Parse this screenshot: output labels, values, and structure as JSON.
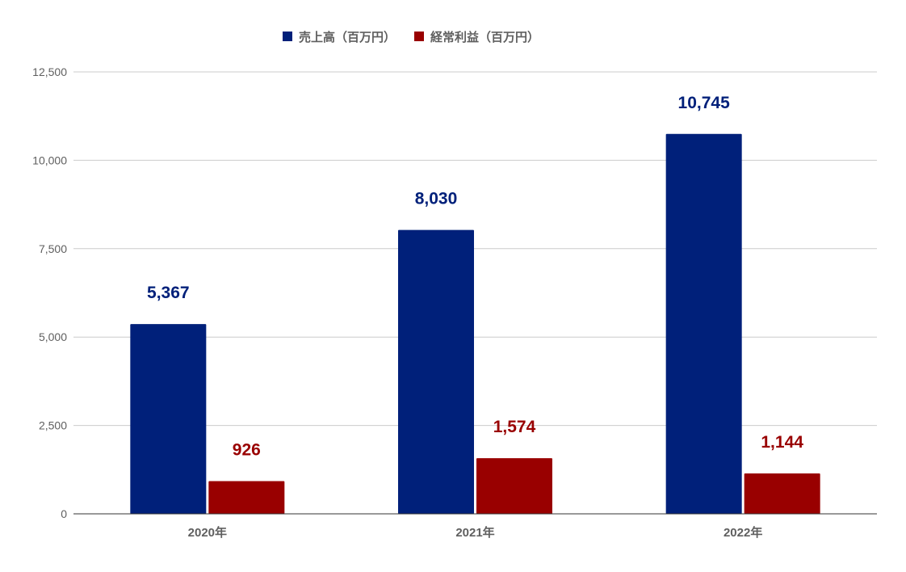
{
  "chart_data": {
    "type": "bar",
    "categories": [
      "2020年",
      "2021年",
      "2022年"
    ],
    "series": [
      {
        "name": "売上高（百万円）",
        "values": [
          5367,
          8030,
          10745
        ],
        "labels": [
          "5,367",
          "8,030",
          "10,745"
        ],
        "color": "#00207a"
      },
      {
        "name": "経常利益（百万円）",
        "values": [
          926,
          1574,
          1144
        ],
        "labels": [
          "926",
          "1,574",
          "1,144"
        ],
        "color": "#990000"
      }
    ],
    "ylim": [
      0,
      12500
    ],
    "yticks": [
      0,
      2500,
      5000,
      7500,
      10000,
      12500
    ],
    "ytick_labels": [
      "0",
      "2,500",
      "5,000",
      "7,500",
      "10,000",
      "12,500"
    ],
    "grid": true,
    "legend_position": "top-center"
  }
}
